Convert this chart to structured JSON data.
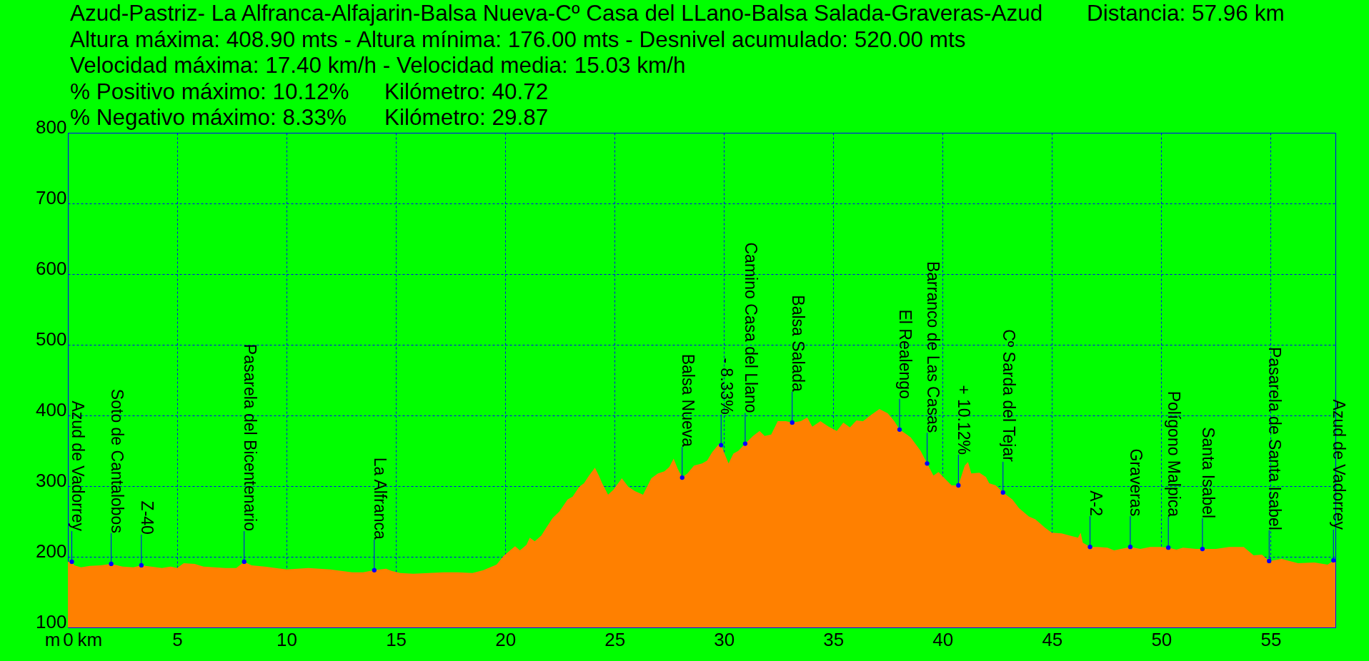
{
  "chart_data": {
    "type": "area",
    "title": "Azud-Pastriz- La Alfranca-Alfajarin-Balsa Nueva-Cº Casa del LLano-Balsa Salada-Graveras-Azud",
    "annotations": [
      "Distancia: 57.96 km",
      "Altura máxima: 408.90 mts - Altura mínima: 176.00 mts - Desnivel acumulado: 520.00 mts",
      "Velocidad máxima: 17.40 km/h - Velocidad media: 15.03 km/h",
      "% Positivo máximo: 10.12%",
      "Kilómetro: 40.72",
      "% Negativo máximo: 8.33%",
      "Kilómetro: 29.87",
      {
        "text": "Azud de Vadorrey",
        "x": 0.18,
        "y": 193
      },
      {
        "text": "Soto de Cantalobos",
        "x": 1.98,
        "y": 190
      },
      {
        "text": "Z-40",
        "x": 3.36,
        "y": 188
      },
      {
        "text": "Pasarela del Bicentenario",
        "x": 8.06,
        "y": 193
      },
      {
        "text": "La Alfranca",
        "x": 14.01,
        "y": 181
      },
      {
        "text": "Balsa Nueva",
        "x": 28.09,
        "y": 312
      },
      {
        "text": "- 8.33%",
        "x": 29.87,
        "y": 358
      },
      {
        "text": "Camino Casa del Llano",
        "x": 30.97,
        "y": 360
      },
      {
        "text": "Balsa Salada",
        "x": 33.12,
        "y": 390
      },
      {
        "text": "El Realengo",
        "x": 38.03,
        "y": 380
      },
      {
        "text": "Barranco de Las Casas",
        "x": 39.29,
        "y": 332
      },
      {
        "text": "+ 10.12%",
        "x": 40.72,
        "y": 301
      },
      {
        "text": "Cº Sarda del Tejar",
        "x": 42.76,
        "y": 291
      },
      {
        "text": "A-2",
        "x": 46.74,
        "y": 214
      },
      {
        "text": "Graveras",
        "x": 48.58,
        "y": 214
      },
      {
        "text": "Polígono Malpica",
        "x": 50.32,
        "y": 213
      },
      {
        "text": "Santa Isabel",
        "x": 51.88,
        "y": 211
      },
      {
        "text": "Pasarela de Santa Isabel",
        "x": 54.93,
        "y": 194
      },
      {
        "text": "Azud de Vadorrey",
        "x": 57.87,
        "y": 195
      }
    ],
    "xlabel": "km",
    "ylabel": "m",
    "x": [
      0,
      0.18,
      0.3,
      0.6,
      1.0,
      1.5,
      1.98,
      2.5,
      3.0,
      3.36,
      3.8,
      4.3,
      4.7,
      5.0,
      5.3,
      5.8,
      6.2,
      6.7,
      7.2,
      7.7,
      8.06,
      8.4,
      9.0,
      9.5,
      10.0,
      10.5,
      11.0,
      11.5,
      12.0,
      12.5,
      13.0,
      13.5,
      14.01,
      14.55,
      14.8,
      15.2,
      15.8,
      16.5,
      17.2,
      17.82,
      18.5,
      19.0,
      19.6,
      19.92,
      20.22,
      20.45,
      20.67,
      20.97,
      21.12,
      21.35,
      21.65,
      21.87,
      22.17,
      22.47,
      22.85,
      23.08,
      23.38,
      23.6,
      23.83,
      24.1,
      24.28,
      24.43,
      24.7,
      24.95,
      25.33,
      25.63,
      25.93,
      26.3,
      26.68,
      26.98,
      27.28,
      27.5,
      27.7,
      27.88,
      28.09,
      28.33,
      28.63,
      29.0,
      29.23,
      29.46,
      29.76,
      29.87,
      30.21,
      30.43,
      30.66,
      30.97,
      31.33,
      31.63,
      31.86,
      32.16,
      32.46,
      32.83,
      33.12,
      33.51,
      33.81,
      34.04,
      34.41,
      34.79,
      35.16,
      35.46,
      35.76,
      36.06,
      36.36,
      36.74,
      37.11,
      37.49,
      37.79,
      38.03,
      38.54,
      38.99,
      39.29,
      39.58,
      39.81,
      40.03,
      40.41,
      40.72,
      41.01,
      41.16,
      41.31,
      41.68,
      41.98,
      42.13,
      42.43,
      42.76,
      43.19,
      43.49,
      43.94,
      44.24,
      44.69,
      44.99,
      45.44,
      45.81,
      46.19,
      46.31,
      46.41,
      46.74,
      47.09,
      47.54,
      47.84,
      48.58,
      49.04,
      49.49,
      49.94,
      50.32,
      50.69,
      50.99,
      51.59,
      51.88,
      52.5,
      53.1,
      53.77,
      54.22,
      54.6,
      54.93,
      55.5,
      56.25,
      57.0,
      57.6,
      57.96
    ],
    "series": [
      {
        "color": "#ff8000",
        "values": [
          193,
          193,
          188,
          185,
          187,
          188,
          190,
          186,
          185,
          188,
          186,
          184,
          186,
          184,
          191,
          190,
          186,
          185,
          184,
          184,
          193,
          188,
          186,
          184,
          182,
          183,
          184,
          183,
          182,
          180,
          178,
          178,
          181,
          183,
          180,
          177,
          176,
          177,
          178,
          178,
          177,
          181,
          189,
          201,
          209,
          215,
          209,
          217,
          227,
          222,
          230,
          241,
          255,
          264,
          281,
          285,
          299,
          304,
          315,
          326,
          315,
          304,
          288,
          295,
          311,
          299,
          293,
          288,
          311,
          318,
          321,
          327,
          339,
          325,
          312,
          318,
          329,
          332,
          336,
          348,
          359,
          358,
          332,
          346,
          350,
          360,
          371,
          378,
          371,
          373,
          392,
          392,
          390,
          392,
          397,
          384,
          392,
          384,
          378,
          390,
          383,
          393,
          392,
          401,
          409,
          403,
          392,
          380,
          369,
          350,
          332,
          315,
          320,
          313,
          301,
          301,
          329,
          334,
          318,
          319,
          313,
          304,
          301,
          291,
          281,
          269,
          257,
          253,
          241,
          234,
          233,
          230,
          227,
          234,
          220,
          214,
          214,
          213,
          209,
          214,
          211,
          214,
          214,
          213,
          210,
          213,
          211,
          211,
          211,
          214,
          214,
          202,
          203,
          194,
          197,
          191,
          192,
          189,
          196
        ]
      }
    ],
    "xlim": [
      0,
      57.96
    ],
    "ylim": [
      100,
      800
    ],
    "xticks": [
      0,
      5,
      10,
      15,
      20,
      25,
      30,
      35,
      40,
      45,
      50,
      55
    ],
    "yticks": [
      100,
      200,
      300,
      400,
      500,
      600,
      700,
      800
    ],
    "grid": true
  }
}
